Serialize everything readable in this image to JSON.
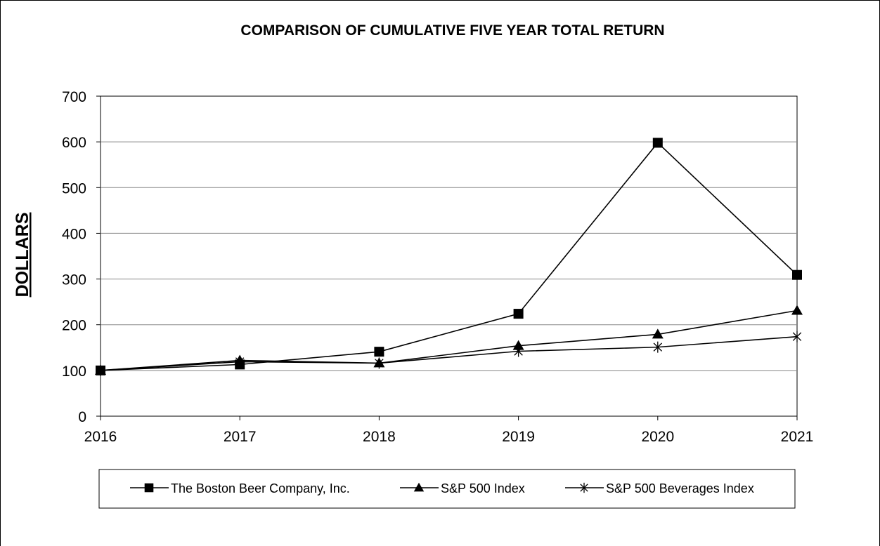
{
  "chart_data": {
    "type": "line",
    "title": "COMPARISON OF CUMULATIVE FIVE YEAR TOTAL RETURN",
    "xlabel": "",
    "ylabel": "DOLLARS",
    "x": [
      "2016",
      "2017",
      "2018",
      "2019",
      "2020",
      "2021"
    ],
    "ylim": [
      0,
      700
    ],
    "yticks": [
      0,
      100,
      200,
      300,
      400,
      500,
      600,
      700
    ],
    "yticklabels": [
      "0",
      "100",
      "200",
      "300",
      "400",
      "500",
      "600",
      "700"
    ],
    "grid": "horizontal",
    "legend_position": "bottom",
    "series": [
      {
        "name": "The Boston Beer Company, Inc.",
        "marker": "square",
        "values": [
          100,
          113,
          141,
          224,
          598,
          309
        ]
      },
      {
        "name": "S&P 500 Index",
        "marker": "triangle",
        "values": [
          100,
          122,
          116,
          154,
          179,
          231
        ]
      },
      {
        "name": "S&P 500 Beverages Index",
        "marker": "asterisk",
        "values": [
          100,
          119,
          116,
          142,
          151,
          174
        ]
      }
    ]
  }
}
